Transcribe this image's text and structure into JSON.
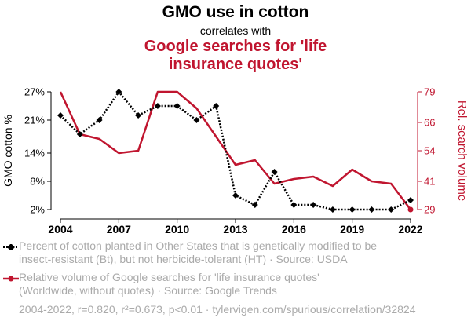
{
  "header": {
    "title": "GMO use in cotton",
    "correlates": "correlates with",
    "subtitle_line1": "Google searches for 'life",
    "subtitle_line2": "insurance quotes'"
  },
  "colors": {
    "series1": "#000000",
    "series2": "#c0152f",
    "muted": "#aaaaaa"
  },
  "chart_data": {
    "type": "line",
    "x": [
      2004,
      2005,
      2006,
      2007,
      2008,
      2009,
      2010,
      2011,
      2012,
      2013,
      2014,
      2015,
      2016,
      2017,
      2018,
      2019,
      2020,
      2021,
      2022
    ],
    "series": [
      {
        "name": "GMO cotton %",
        "axis": "left",
        "style": "dotted-diamond",
        "values": [
          22,
          18,
          21,
          27,
          22,
          24,
          24,
          21,
          24,
          5,
          3,
          10,
          3,
          3,
          2,
          2,
          2,
          2,
          4
        ]
      },
      {
        "name": "Rel. search volume",
        "axis": "right",
        "style": "solid-circle",
        "values": [
          79,
          61,
          59,
          53,
          54,
          79,
          79,
          72,
          60,
          48,
          50,
          40,
          42,
          43,
          39,
          46,
          41,
          40,
          29
        ]
      }
    ],
    "xticks": [
      2004,
      2007,
      2010,
      2013,
      2016,
      2019,
      2022
    ],
    "left_axis": {
      "label": "GMO cotton %",
      "ticks": [
        2,
        8,
        14,
        21,
        27
      ],
      "tick_labels": [
        "2%",
        "8%",
        "14%",
        "21%",
        "27%"
      ],
      "range": [
        2,
        27
      ]
    },
    "right_axis": {
      "label": "Rel. search volume",
      "ticks": [
        29,
        41,
        54,
        66,
        79
      ],
      "tick_labels": [
        "29",
        "41",
        "54",
        "66",
        "79"
      ],
      "range": [
        29,
        79
      ]
    },
    "grid": false
  },
  "legend": {
    "item1_line1": "Percent of cotton planted in Other States that is genetically modified to be",
    "item1_line2": "insect-resistant (Bt), but not herbicide-tolerant (HT) · Source: USDA",
    "item2_line1": "Relative volume of Google searches for 'life insurance quotes'",
    "item2_line2": "(Worldwide, without quotes) · Source: Google Trends"
  },
  "footer": "2004-2022, r=0.820, r²=0.673, p<0.01 · tylervigen.com/spurious/correlation/32824"
}
